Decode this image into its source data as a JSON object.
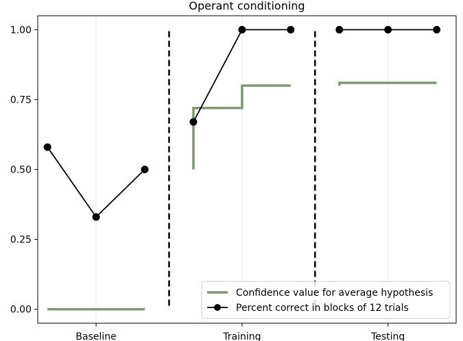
{
  "chart_data": {
    "type": "line",
    "title": "Operant conditioning",
    "xlabel": "",
    "ylabel": "",
    "ylim": [
      -0.05,
      1.05
    ],
    "yticks": [
      0.0,
      0.25,
      0.5,
      0.75,
      1.0
    ],
    "ytick_labels": [
      "0.00",
      "0.25",
      "0.50",
      "0.75",
      "1.00"
    ],
    "xlim": [
      -0.2,
      8.4
    ],
    "x_categories": [
      {
        "label": "Baseline",
        "x": 1
      },
      {
        "label": "Training",
        "x": 4
      },
      {
        "label": "Testing",
        "x": 7
      }
    ],
    "phase_dividers_x": [
      2.5,
      5.5
    ],
    "grid": "vertical at category ticks",
    "legend": {
      "position": "bottom-right",
      "entries": [
        {
          "label": "Confidence value for average hypothesis",
          "color": "#7a9a6a",
          "style": "line"
        },
        {
          "label": "Percent correct in blocks of 12 trials",
          "color": "#000000",
          "style": "line-marker"
        }
      ]
    },
    "series": [
      {
        "color": "#7a9a6a",
        "style": "step",
        "segments": [
          [
            [
              0,
              0.0
            ],
            [
              2,
              0.0
            ]
          ],
          [
            [
              3,
              0.5
            ],
            [
              3,
              0.72
            ],
            [
              4,
              0.72
            ],
            [
              4,
              0.8
            ],
            [
              5,
              0.8
            ]
          ],
          [
            [
              6,
              0.8
            ],
            [
              6,
              0.81
            ],
            [
              8,
              0.81
            ]
          ]
        ]
      },
      {
        "color": "#000000",
        "style": "line-marker",
        "segments": [
          [
            [
              0,
              0.58
            ],
            [
              1,
              0.33
            ],
            [
              2,
              0.5
            ]
          ],
          [
            [
              3,
              0.67
            ],
            [
              4,
              1.0
            ],
            [
              5,
              1.0
            ]
          ],
          [
            [
              6,
              1.0
            ],
            [
              7,
              1.0
            ],
            [
              8,
              1.0
            ]
          ]
        ]
      }
    ]
  }
}
